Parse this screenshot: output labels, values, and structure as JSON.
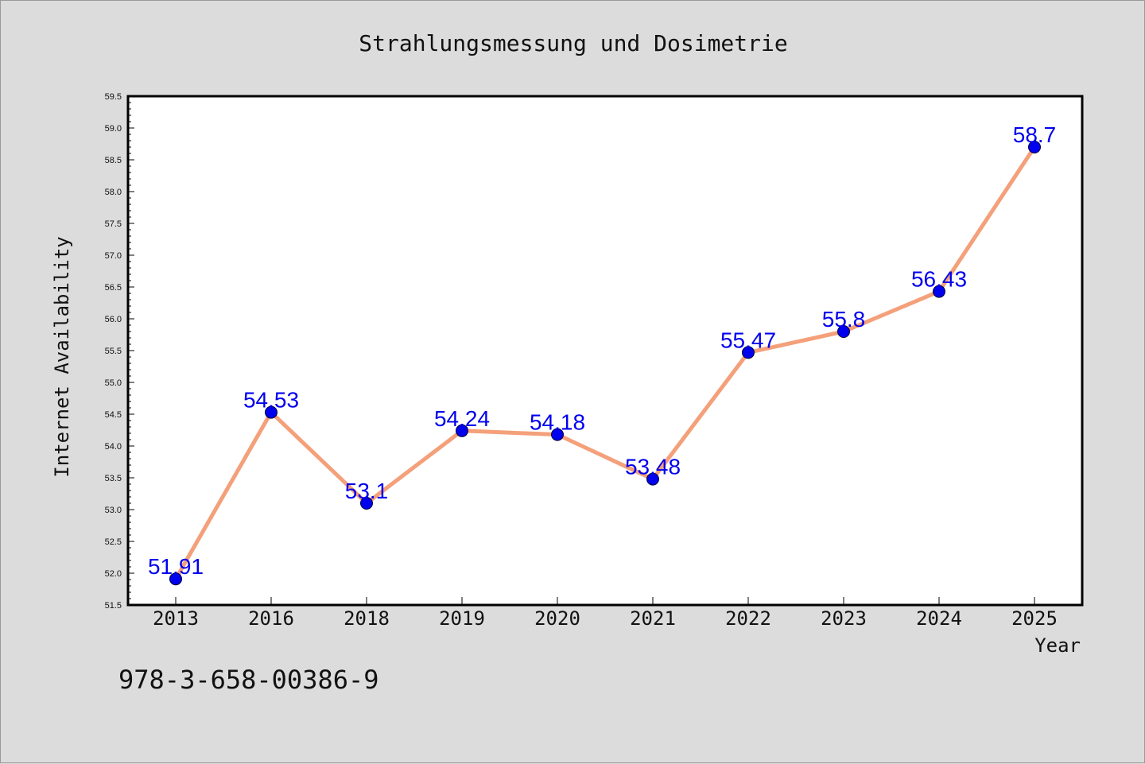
{
  "chart_data": {
    "type": "line",
    "title": "Strahlungsmessung und Dosimetrie",
    "xlabel": "Year",
    "ylabel": "Internet Availability",
    "categories": [
      "2013",
      "2016",
      "2018",
      "2019",
      "2020",
      "2021",
      "2022",
      "2023",
      "2024",
      "2025"
    ],
    "series": [
      {
        "values": [
          51.91,
          54.53,
          53.1,
          54.24,
          54.18,
          53.48,
          55.47,
          55.8,
          56.43,
          58.7
        ],
        "data_labels": [
          "51.91",
          "54.53",
          "53.1",
          "54.24",
          "54.18",
          "53.48",
          "55.47",
          "55.8",
          "56.43",
          "58.7"
        ],
        "line_color": "#f4a07a",
        "marker_color": "#0000ee"
      }
    ],
    "ylim": [
      51.5,
      59.5
    ],
    "yticks": [
      "51.5",
      "52.0",
      "52.5",
      "53.0",
      "53.5",
      "54.0",
      "54.5",
      "55.0",
      "55.5",
      "56.0",
      "56.5",
      "57.0",
      "57.5",
      "58.0",
      "58.5",
      "59.0",
      "59.5"
    ],
    "grid": false,
    "legend": "none",
    "plot_background": "#ffffff",
    "figure_background": "#dcdcdc",
    "label_color": "#0000ee"
  },
  "footer": {
    "isbn": "978-3-658-00386-9"
  }
}
